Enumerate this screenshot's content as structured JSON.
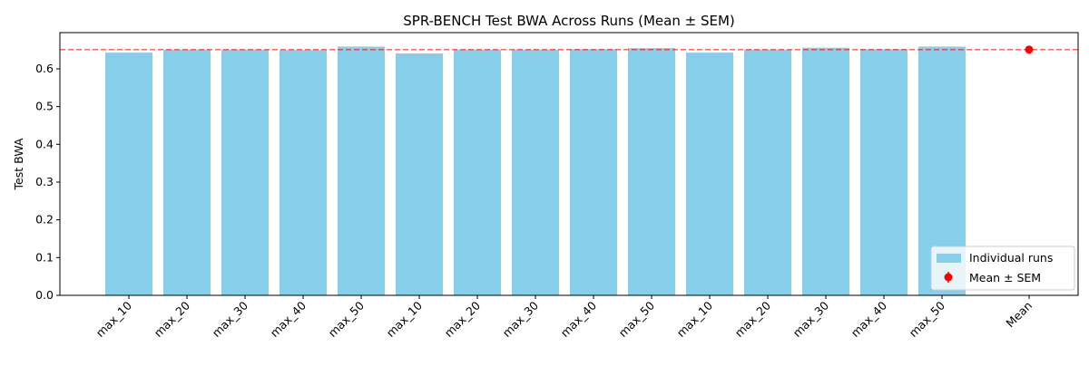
{
  "chart_data": {
    "type": "bar",
    "title": "SPR-BENCH Test BWA Across Runs (Mean ± SEM)",
    "y_label": "Test BWA",
    "categories": [
      "max_10",
      "max_20",
      "max_30",
      "max_40",
      "max_50",
      "max_10",
      "max_20",
      "max_30",
      "max_40",
      "max_50",
      "max_10",
      "max_20",
      "max_30",
      "max_40",
      "max_50"
    ],
    "series": [
      {
        "name": "Individual runs",
        "color": "#87ceeb",
        "values": [
          0.643,
          0.651,
          0.651,
          0.65,
          0.659,
          0.641,
          0.651,
          0.651,
          0.652,
          0.655,
          0.643,
          0.651,
          0.656,
          0.652,
          0.659
        ]
      }
    ],
    "mean": {
      "name": "Mean ± SEM",
      "label": "Mean",
      "value": 0.651,
      "error": 0.0015,
      "color": "#ff0000"
    },
    "ylim": [
      0,
      0.696
    ],
    "yticks": [
      {
        "value": 0,
        "label": "0.0"
      },
      0.1,
      0.2,
      0.3,
      0.4,
      0.5,
      0.6
    ],
    "legend": "lower right"
  }
}
